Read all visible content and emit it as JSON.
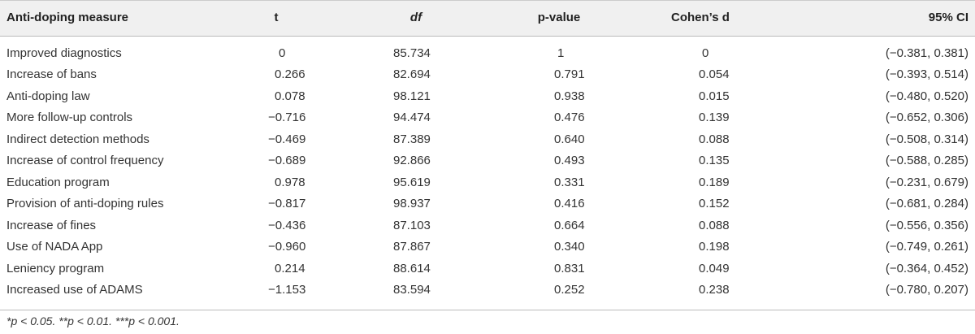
{
  "table": {
    "header": [
      "Anti-doping measure",
      "t",
      "df",
      "p-value",
      "Cohen’s d",
      "95% CI"
    ],
    "rows": [
      [
        "Improved diagnostics",
        "0",
        "85.734",
        "1",
        "0",
        "(−0.381, 0.381)"
      ],
      [
        "Increase of bans",
        "0.266",
        "82.694",
        "0.791",
        "0.054",
        "(−0.393, 0.514)"
      ],
      [
        "Anti-doping law",
        "0.078",
        "98.121",
        "0.938",
        "0.015",
        "(−0.480, 0.520)"
      ],
      [
        "More follow-up controls",
        "−0.716",
        "94.474",
        "0.476",
        "0.139",
        "(−0.652, 0.306)"
      ],
      [
        "Indirect detection methods",
        "−0.469",
        "87.389",
        "0.640",
        "0.088",
        "(−0.508, 0.314)"
      ],
      [
        "Increase of control frequency",
        "−0.689",
        "92.866",
        "0.493",
        "0.135",
        "(−0.588, 0.285)"
      ],
      [
        "Education program",
        "0.978",
        "95.619",
        "0.331",
        "0.189",
        "(−0.231, 0.679)"
      ],
      [
        "Provision of anti-doping rules",
        "−0.817",
        "98.937",
        "0.416",
        "0.152",
        "(−0.681, 0.284)"
      ],
      [
        "Increase of fines",
        "−0.436",
        "87.103",
        "0.664",
        "0.088",
        "(−0.556, 0.356)"
      ],
      [
        "Use of NADA App",
        "−0.960",
        "87.867",
        "0.340",
        "0.198",
        "(−0.749, 0.261)"
      ],
      [
        "Leniency program",
        "0.214",
        "88.614",
        "0.831",
        "0.049",
        "(−0.364, 0.452)"
      ],
      [
        "Increased use of ADAMS",
        "−1.153",
        "83.594",
        "0.252",
        "0.238",
        "(−0.780, 0.207)"
      ]
    ]
  },
  "footnote": "*p < 0.05. **p < 0.01. ***p < 0.001."
}
